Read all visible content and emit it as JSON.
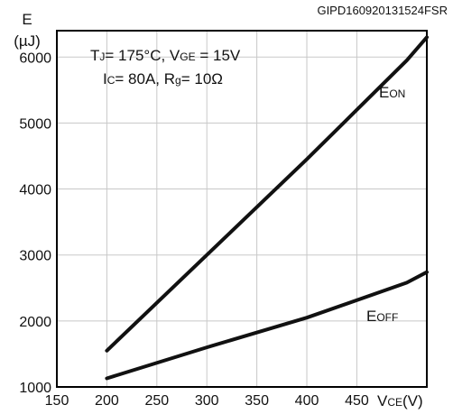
{
  "header_id": "GIPD160920131524FSR",
  "chart_data": {
    "type": "line",
    "y_label_line1": "E",
    "y_label_line2": "(µJ)",
    "x_label": {
      "main": "V",
      "sub": "CE",
      "unit": "(V)"
    },
    "x_ticks": [
      150,
      200,
      250,
      300,
      350,
      400,
      450
    ],
    "y_ticks": [
      1000,
      2000,
      3000,
      4000,
      5000,
      6000
    ],
    "xlim": [
      150,
      520
    ],
    "ylim": [
      1000,
      6400
    ],
    "grid": true,
    "conditions": {
      "line1": {
        "tj_sym": "T",
        "tj_sub": "J",
        "tj_val": "= 175°C, V",
        "vge_sub": "GE",
        "vge_val": " = 15V"
      },
      "line2": {
        "ic_sym": "I",
        "ic_sub": "C",
        "ic_val": "= 80A, R",
        "rg_sub": "g",
        "rg_val": "= 10Ω"
      }
    },
    "series": [
      {
        "label_main": "E",
        "label_sub": "ON",
        "x": [
          200,
          300,
          400,
          500,
          520
        ],
        "y": [
          1550,
          3000,
          4450,
          5950,
          6300
        ]
      },
      {
        "label_main": "E",
        "label_sub": "OFF",
        "x": [
          200,
          300,
          400,
          500,
          520
        ],
        "y": [
          1130,
          1600,
          2050,
          2580,
          2740
        ]
      }
    ]
  }
}
